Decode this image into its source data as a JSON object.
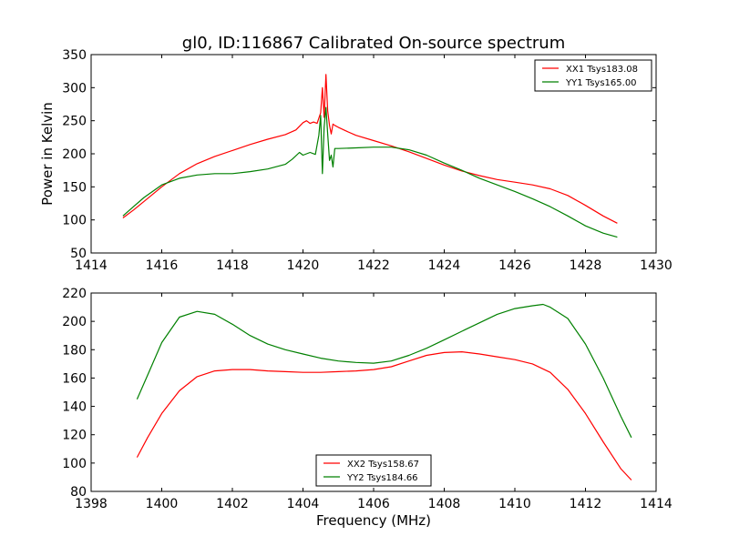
{
  "figure": {
    "title": "gl0, ID:116867 Calibrated On-source spectrum",
    "shared_xlabel": "Frequency (MHz)"
  },
  "chart_data": [
    {
      "type": "line",
      "title": "gl0, ID:116867 Calibrated On-source spectrum",
      "xlabel": "",
      "ylabel": "Power in Kelvin",
      "xlim": [
        1414,
        1430
      ],
      "ylim": [
        50,
        350
      ],
      "xticks": [
        1414,
        1416,
        1418,
        1420,
        1422,
        1424,
        1426,
        1428,
        1430
      ],
      "yticks": [
        50,
        100,
        150,
        200,
        250,
        300,
        350
      ],
      "grid": false,
      "legend_position": "upper right",
      "series": [
        {
          "name": "XX1 Tsys183.08",
          "color": "#ff0000",
          "x": [
            1414.9,
            1415.2,
            1415.5,
            1416.0,
            1416.5,
            1417.0,
            1417.5,
            1418.0,
            1418.5,
            1419.0,
            1419.5,
            1419.8,
            1420.0,
            1420.1,
            1420.2,
            1420.3,
            1420.4,
            1420.5,
            1420.55,
            1420.6,
            1420.65,
            1420.7,
            1420.75,
            1420.8,
            1420.85,
            1420.9,
            1421.0,
            1421.2,
            1421.5,
            1422.0,
            1422.5,
            1423.0,
            1423.5,
            1424.0,
            1424.5,
            1425.0,
            1425.5,
            1426.0,
            1426.5,
            1427.0,
            1427.5,
            1428.0,
            1428.5,
            1428.9
          ],
          "y": [
            103,
            115,
            128,
            150,
            170,
            185,
            196,
            205,
            214,
            222,
            229,
            236,
            247,
            250,
            246,
            248,
            246,
            262,
            300,
            255,
            320,
            265,
            243,
            230,
            245,
            243,
            240,
            235,
            228,
            220,
            212,
            203,
            193,
            183,
            174,
            167,
            161,
            157,
            153,
            147,
            137,
            122,
            106,
            95
          ]
        },
        {
          "name": "YY1 Tsys165.00",
          "color": "#008000",
          "x": [
            1414.9,
            1415.2,
            1415.5,
            1416.0,
            1416.5,
            1417.0,
            1417.5,
            1418.0,
            1418.5,
            1419.0,
            1419.5,
            1419.7,
            1419.9,
            1420.0,
            1420.2,
            1420.35,
            1420.45,
            1420.5,
            1420.55,
            1420.6,
            1420.65,
            1420.7,
            1420.75,
            1420.8,
            1420.85,
            1420.9,
            1421.0,
            1421.5,
            1422.0,
            1422.5,
            1423.0,
            1423.5,
            1424.0,
            1424.5,
            1425.0,
            1425.5,
            1426.0,
            1426.5,
            1427.0,
            1427.5,
            1428.0,
            1428.5,
            1428.9
          ],
          "y": [
            106,
            120,
            134,
            153,
            163,
            168,
            170,
            170,
            173,
            177,
            184,
            192,
            202,
            198,
            202,
            199,
            228,
            258,
            170,
            240,
            270,
            230,
            190,
            198,
            180,
            208,
            208,
            209,
            210,
            210,
            206,
            198,
            186,
            175,
            163,
            153,
            143,
            132,
            120,
            106,
            91,
            80,
            74
          ]
        }
      ]
    },
    {
      "type": "line",
      "title": "",
      "xlabel": "Frequency (MHz)",
      "ylabel": "",
      "xlim": [
        1398,
        1414
      ],
      "ylim": [
        80,
        220
      ],
      "xticks": [
        1398,
        1400,
        1402,
        1404,
        1406,
        1408,
        1410,
        1412,
        1414
      ],
      "yticks": [
        80,
        100,
        120,
        140,
        160,
        180,
        200,
        220
      ],
      "grid": false,
      "legend_position": "lower center",
      "series": [
        {
          "name": "XX2 Tsys158.67",
          "color": "#ff0000",
          "x": [
            1399.3,
            1399.6,
            1400.0,
            1400.5,
            1401.0,
            1401.5,
            1402.0,
            1402.5,
            1403.0,
            1403.5,
            1404.0,
            1404.5,
            1405.0,
            1405.5,
            1406.0,
            1406.5,
            1407.0,
            1407.5,
            1408.0,
            1408.5,
            1409.0,
            1409.5,
            1410.0,
            1410.5,
            1411.0,
            1411.5,
            1412.0,
            1412.5,
            1413.0,
            1413.3
          ],
          "y": [
            104,
            118,
            135,
            151,
            161,
            165,
            166,
            166,
            165,
            164.5,
            164,
            164,
            164.5,
            165,
            166,
            168,
            172,
            176,
            178,
            178.5,
            177,
            175,
            173,
            170,
            164,
            152,
            135,
            115,
            96,
            88
          ]
        },
        {
          "name": "YY2 Tsys184.66",
          "color": "#008000",
          "x": [
            1399.3,
            1399.6,
            1400.0,
            1400.5,
            1401.0,
            1401.5,
            1402.0,
            1402.5,
            1403.0,
            1403.5,
            1404.0,
            1404.5,
            1405.0,
            1405.5,
            1406.0,
            1406.5,
            1407.0,
            1407.5,
            1408.0,
            1408.5,
            1409.0,
            1409.5,
            1410.0,
            1410.5,
            1410.8,
            1411.0,
            1411.5,
            1412.0,
            1412.5,
            1413.0,
            1413.3
          ],
          "y": [
            145,
            162,
            185,
            203,
            207,
            205,
            198,
            190,
            184,
            180,
            177,
            174,
            172,
            171,
            170.5,
            172,
            176,
            181,
            187,
            193,
            199,
            205,
            209,
            211,
            212,
            210,
            202,
            184,
            160,
            133,
            118
          ]
        }
      ]
    }
  ]
}
